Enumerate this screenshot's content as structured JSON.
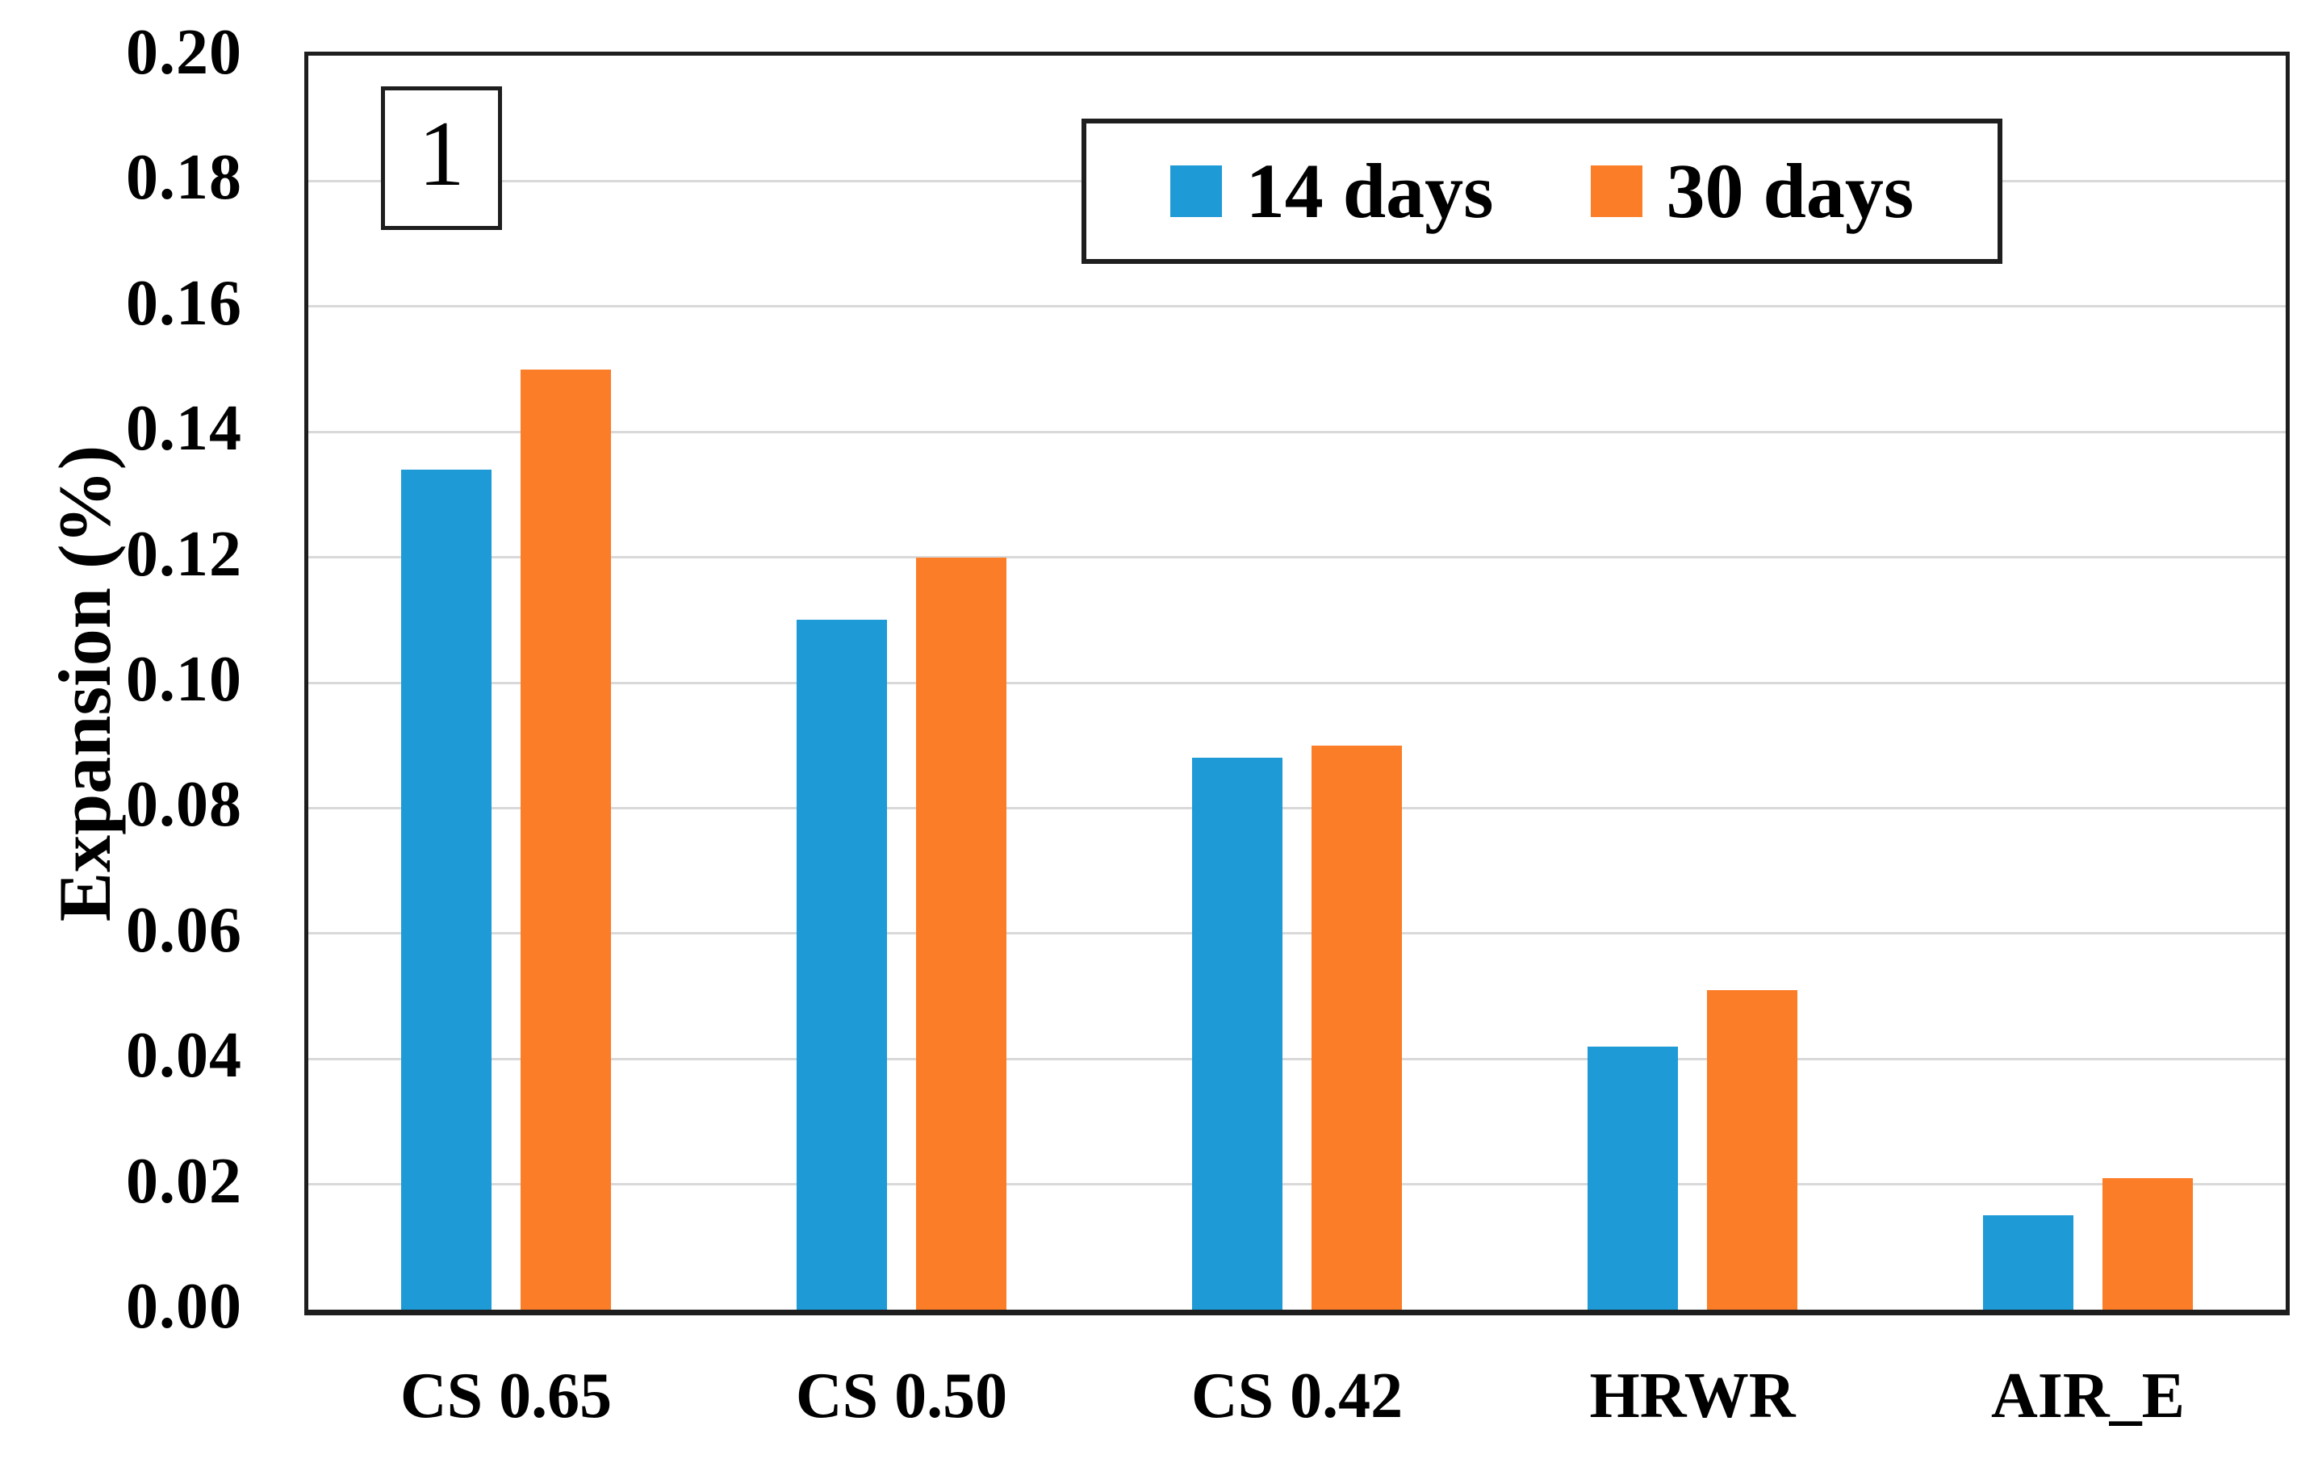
{
  "figure": {
    "panel_label": "1",
    "background": "#ffffff",
    "frame_color": "#1e1e1e",
    "gridline_color": "#d9d9d9"
  },
  "y_axis": {
    "title": "Expansion (%)",
    "tick_labels": [
      "0.00",
      "0.02",
      "0.04",
      "0.06",
      "0.08",
      "0.10",
      "0.12",
      "0.14",
      "0.16",
      "0.18",
      "0.20"
    ]
  },
  "legend": {
    "entries": [
      {
        "label": "14 days",
        "color": "#1e9ad6"
      },
      {
        "label": "30 days",
        "color": "#fb7d28"
      }
    ]
  },
  "chart_data": {
    "type": "bar",
    "title": "",
    "xlabel": "",
    "ylabel": "Expansion (%)",
    "categories": [
      "CS 0.65",
      "CS 0.50",
      "CS 0.42",
      "HRWR",
      "AIR_E"
    ],
    "series": [
      {
        "name": "14 days",
        "color": "#1e9ad6",
        "values": [
          0.134,
          0.11,
          0.088,
          0.042,
          0.015
        ]
      },
      {
        "name": "30 days",
        "color": "#fb7d28",
        "values": [
          0.15,
          0.12,
          0.09,
          0.051,
          0.021
        ]
      }
    ],
    "ylim": [
      0,
      0.2
    ],
    "ytick_step": 0.02,
    "grid": true,
    "legend_position": "top-center-inside"
  }
}
